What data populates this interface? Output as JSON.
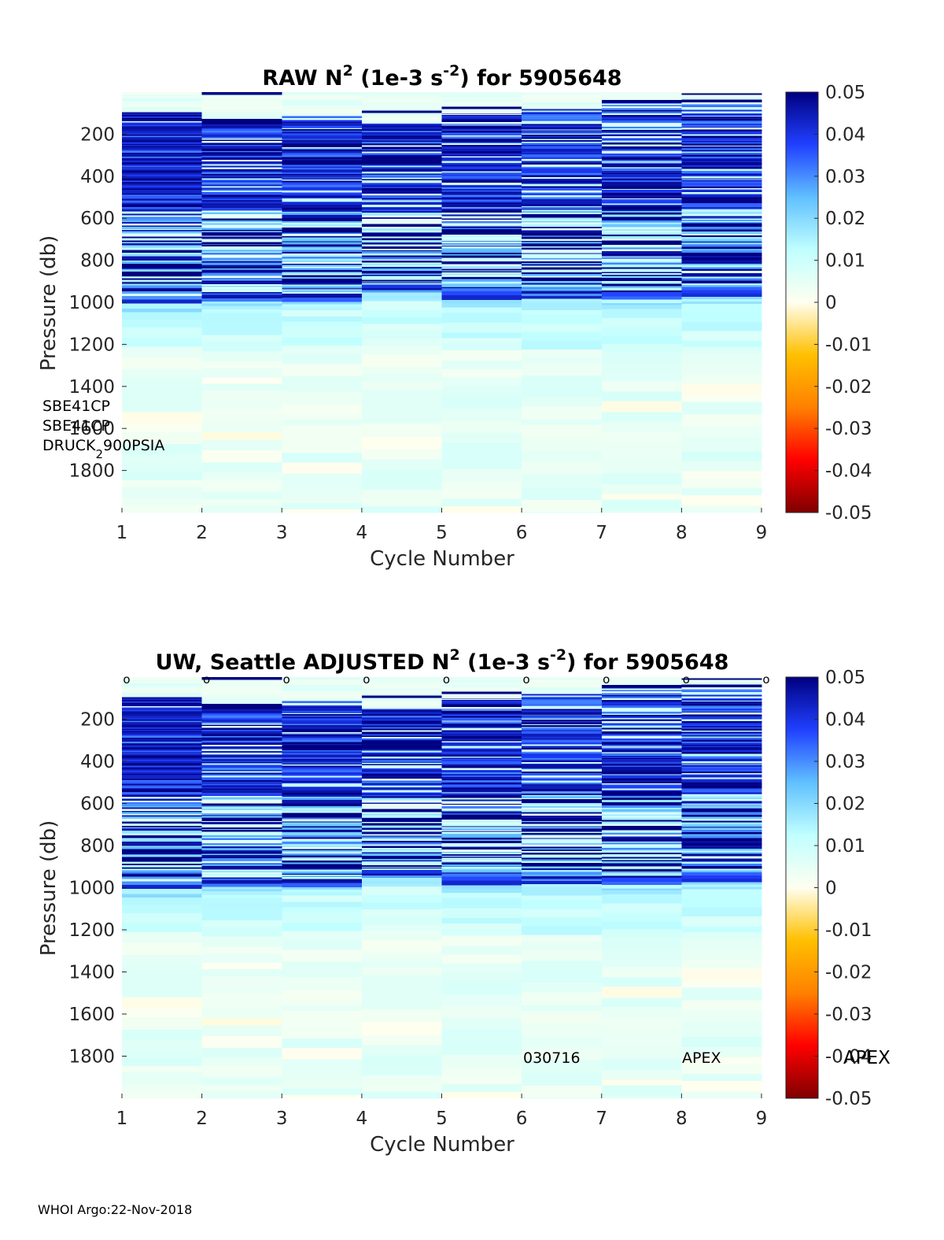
{
  "footer": "WHOI Argo:22-Nov-2018",
  "colors": {
    "colormap": [
      "#800000",
      "#ff0000",
      "#ff8000",
      "#ffc000",
      "#fffff0",
      "#c0ffff",
      "#60c0ff",
      "#2040ff",
      "#000080"
    ],
    "axis": "#262626"
  },
  "chart_data": [
    {
      "type": "heatmap",
      "title_main": "RAW N",
      "title_sup": "2",
      "title_mid": " (1e-3 s",
      "title_sup2": "-2",
      "title_end": ") for 5905648",
      "xlabel": "Cycle Number",
      "ylabel": "Pressure (db)",
      "xlim": [
        1,
        9
      ],
      "ylim": [
        2000,
        0
      ],
      "xticks": [
        "1",
        "2",
        "3",
        "4",
        "5",
        "6",
        "7",
        "8",
        "9"
      ],
      "yticks": [
        "200",
        "400",
        "600",
        "800",
        "1000",
        "1200",
        "1400",
        "1600",
        "1800"
      ],
      "colorbar": {
        "min": -0.05,
        "max": 0.05,
        "ticks": [
          "0.05",
          "0.04",
          "0.03",
          "0.02",
          "0.01",
          "0",
          "-0.01",
          "-0.02",
          "-0.03",
          "-0.04",
          "-0.05"
        ]
      },
      "cycles": [
        1,
        2,
        3,
        4,
        5,
        6,
        7,
        8
      ],
      "surface_depth_db": [
        90,
        130,
        110,
        140,
        95,
        80,
        45,
        55
      ],
      "strong_band_db": [
        980,
        975,
        970,
        930,
        950,
        960,
        965,
        945
      ],
      "deep_value": 0.005,
      "annotations": [
        "SBE41CP",
        "SBE41CP",
        "DRUCK",
        "2",
        "900PSIA"
      ],
      "markers": []
    },
    {
      "type": "heatmap",
      "title_main": "UW, Seattle  ADJUSTED N",
      "title_sup": "2",
      "title_mid": " (1e-3 s",
      "title_sup2": "-2",
      "title_end": ") for 5905648",
      "xlabel": "Cycle Number",
      "ylabel": "Pressure (db)",
      "xlim": [
        1,
        9
      ],
      "ylim": [
        2000,
        0
      ],
      "xticks": [
        "1",
        "2",
        "3",
        "4",
        "5",
        "6",
        "7",
        "8",
        "9"
      ],
      "yticks": [
        "200",
        "400",
        "600",
        "800",
        "1000",
        "1200",
        "1400",
        "1600",
        "1800"
      ],
      "colorbar": {
        "min": -0.05,
        "max": 0.05,
        "ticks": [
          "0.05",
          "0.04",
          "0.03",
          "0.02",
          "0.01",
          "0",
          "-0.01",
          "-0.02",
          "-0.03",
          "-0.04",
          "-0.05"
        ]
      },
      "cycles": [
        1,
        2,
        3,
        4,
        5,
        6,
        7,
        8
      ],
      "surface_depth_db": [
        90,
        130,
        110,
        140,
        95,
        80,
        45,
        55
      ],
      "strong_band_db": [
        980,
        975,
        970,
        930,
        950,
        960,
        965,
        945
      ],
      "deep_value": 0.005,
      "annotations": [
        "030716",
        "APEX",
        "APEX"
      ],
      "markers": [
        {
          "cycle": 1,
          "label": "o"
        },
        {
          "cycle": 2,
          "label": "o"
        },
        {
          "cycle": 3,
          "label": "o"
        },
        {
          "cycle": 4,
          "label": "o"
        },
        {
          "cycle": 5,
          "label": "o"
        },
        {
          "cycle": 6,
          "label": "o"
        },
        {
          "cycle": 7,
          "label": "o"
        },
        {
          "cycle": 8,
          "label": "o"
        },
        {
          "cycle": 9,
          "label": "o"
        }
      ]
    }
  ]
}
